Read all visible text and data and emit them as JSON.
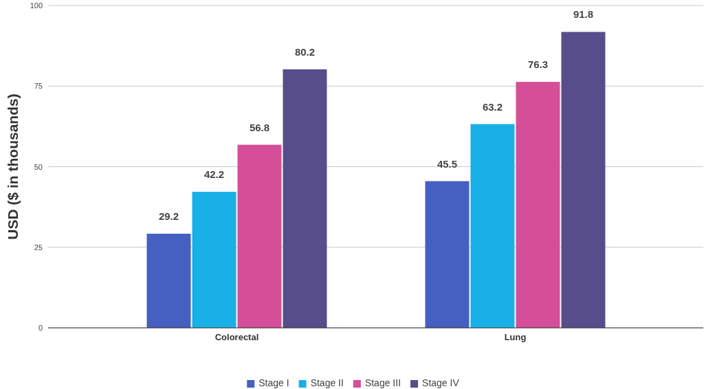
{
  "chart_data": {
    "type": "bar",
    "ylabel": "USD ($ in thousands)",
    "categories": [
      "Colorectal",
      "Lung"
    ],
    "series": [
      {
        "name": "Stage I",
        "color": "#4560c1",
        "values": [
          29.2,
          45.5
        ]
      },
      {
        "name": "Stage II",
        "color": "#18b0e6",
        "values": [
          42.2,
          63.2
        ]
      },
      {
        "name": "Stage III",
        "color": "#d44f98",
        "values": [
          56.8,
          76.3
        ]
      },
      {
        "name": "Stage IV",
        "color": "#574d8a",
        "values": [
          80.2,
          91.8
        ]
      }
    ],
    "ylim": [
      0,
      100
    ],
    "yticks": [
      0,
      25,
      50,
      75,
      100
    ],
    "grid": "y",
    "legend": "bottom",
    "data_labels": true
  }
}
